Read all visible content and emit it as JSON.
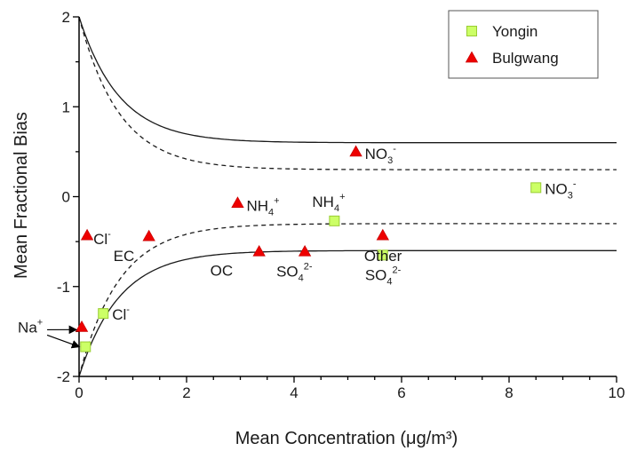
{
  "chart_data": {
    "type": "scatter",
    "xlabel": "Mean Concentration (μg/m³)",
    "ylabel": "Mean Fractional Bias",
    "xlim": [
      0,
      10
    ],
    "ylim": [
      -2,
      2
    ],
    "x_ticks": [
      "0",
      "2",
      "4",
      "6",
      "8",
      "10"
    ],
    "y_ticks": [
      "2",
      "1",
      "0",
      "-1",
      "-2"
    ],
    "grid": false,
    "legend_position": "top-right",
    "legend": [
      {
        "label": "Yongin",
        "marker": "square",
        "color": "#ccff66"
      },
      {
        "label": "Bulgwang",
        "marker": "triangle",
        "color": "#ee0000"
      }
    ],
    "series": [
      {
        "name": "Yongin",
        "marker": "square",
        "points": [
          {
            "x": 0.12,
            "y": -1.67
          },
          {
            "x": 0.45,
            "y": -1.3
          },
          {
            "x": 4.75,
            "y": -0.27
          },
          {
            "x": 5.65,
            "y": -0.65
          },
          {
            "x": 8.5,
            "y": 0.1
          }
        ]
      },
      {
        "name": "Bulgwang",
        "marker": "triangle",
        "points": [
          {
            "x": 0.05,
            "y": -1.45
          },
          {
            "x": 0.15,
            "y": -0.43
          },
          {
            "x": 1.3,
            "y": -0.44
          },
          {
            "x": 2.95,
            "y": -0.07
          },
          {
            "x": 3.35,
            "y": -0.61
          },
          {
            "x": 4.2,
            "y": -0.61
          },
          {
            "x": 5.15,
            "y": 0.5
          },
          {
            "x": 5.65,
            "y": -0.43
          }
        ]
      }
    ],
    "criteria_curves": [
      {
        "style": "solid",
        "asymptote": 0.6,
        "at_zero": 2.0
      },
      {
        "style": "solid",
        "asymptote": -0.6,
        "at_zero": -2.0
      },
      {
        "style": "dashed",
        "asymptote": 0.3,
        "at_zero": 2.0
      },
      {
        "style": "dashed",
        "asymptote": -0.3,
        "at_zero": -2.0
      }
    ],
    "annotations": [
      {
        "base": "NO",
        "sub": "3",
        "sup": "-",
        "x": 5.15,
        "y": 0.5
      },
      {
        "base": "NO",
        "sub": "3",
        "sup": "-",
        "x": 8.5,
        "y": 0.1
      },
      {
        "base": "NH",
        "sub": "4",
        "sup": "+",
        "x": 2.95,
        "y": -0.07
      },
      {
        "base": "NH",
        "sub": "4",
        "sup": "+",
        "x": 4.75,
        "y": -0.27
      },
      {
        "base": "EC",
        "sub": "",
        "sup": "",
        "x": 1.3,
        "y": -0.44
      },
      {
        "base": "Cl",
        "sub": "",
        "sup": "-",
        "x": 0.15,
        "y": -0.43
      },
      {
        "base": "Other",
        "sub": "",
        "sup": "",
        "x": 5.65,
        "y": -0.43
      },
      {
        "base": "OC",
        "sub": "",
        "sup": "",
        "x": 3.35,
        "y": -0.61
      },
      {
        "base": "SO",
        "sub": "4",
        "sup": "2-",
        "x": 4.2,
        "y": -0.61
      },
      {
        "base": "SO",
        "sub": "4",
        "sup": "2-",
        "x": 5.65,
        "y": -0.65
      },
      {
        "base": "Cl",
        "sub": "",
        "sup": "-",
        "x": 0.45,
        "y": -1.3
      },
      {
        "base": "Na",
        "sub": "",
        "sup": "+",
        "x": 0.1,
        "y": -1.56
      }
    ]
  }
}
